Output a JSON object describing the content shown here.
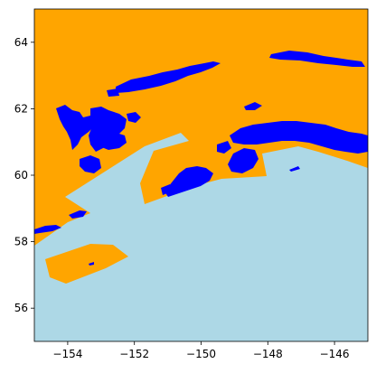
{
  "map": {
    "colors": {
      "land": "#ffa500",
      "water": "#add8e6",
      "glacier": "#0000ff",
      "frame": "#000000"
    },
    "axes": {
      "xlim": [
        -155,
        -145
      ],
      "ylim": [
        55,
        65
      ],
      "x_ticks": [
        {
          "value": -154,
          "label": "−154"
        },
        {
          "value": -152,
          "label": "−152"
        },
        {
          "value": -150,
          "label": "−150"
        },
        {
          "value": -148,
          "label": "−148"
        },
        {
          "value": -146,
          "label": "−146"
        }
      ],
      "y_ticks": [
        {
          "value": 56,
          "label": "56"
        },
        {
          "value": 58,
          "label": "58"
        },
        {
          "value": 60,
          "label": "60"
        },
        {
          "value": 62,
          "label": "62"
        },
        {
          "value": 64,
          "label": "64"
        }
      ]
    }
  }
}
